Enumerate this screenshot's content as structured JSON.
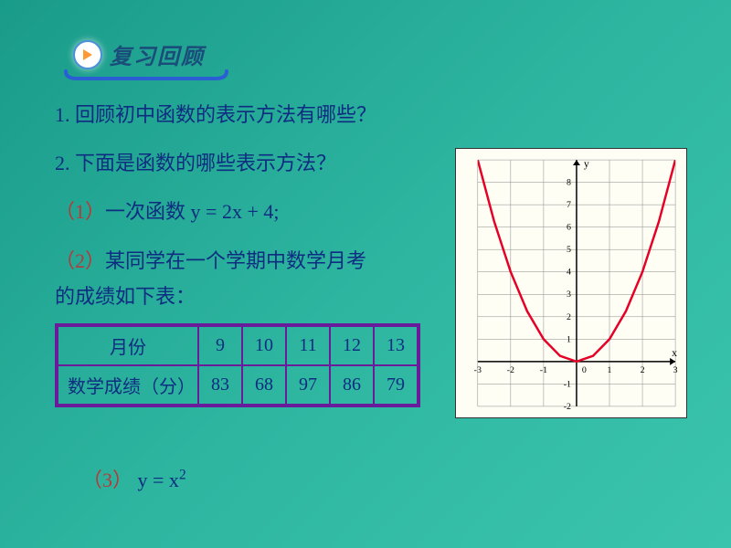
{
  "header": {
    "title": "复习回顾"
  },
  "questions": {
    "q1": "1. 回顾初中函数的表示方法有哪些？",
    "q2": "2. 下面是函数的哪些表示方法？",
    "item1_prefix": "（1）",
    "item1_text": "一次函数",
    "item1_formula": "y = 2x + 4;",
    "item2_prefix": "（2）",
    "item2_text": "某同学在一个学期中数学月考",
    "item2_tail": "的成绩如下表：",
    "item3_prefix": "（3）",
    "item3_formula_base": "y = x",
    "item3_formula_exp": "2"
  },
  "table": {
    "row1_header": "月份",
    "row2_header": "数学成绩（分）",
    "columns": [
      "9",
      "10",
      "11",
      "12",
      "13"
    ],
    "values": [
      "83",
      "68",
      "97",
      "86",
      "79"
    ],
    "border_color": "#6a1b9a",
    "text_color": "#0e2d80"
  },
  "chart": {
    "type": "line",
    "function": "y = x^2",
    "xlim": [
      -3,
      3
    ],
    "ylim": [
      -2,
      9
    ],
    "xtick_step": 1,
    "ytick_step": 1,
    "xticks": [
      -3,
      -2,
      -1,
      0,
      1,
      2,
      3
    ],
    "yticks": [
      -2,
      -1,
      0,
      1,
      2,
      3,
      4,
      5,
      6,
      7,
      8
    ],
    "background_color": "#fffef5",
    "grid_color": "#888888",
    "axis_color": "#000000",
    "curve_color": "#e60026",
    "curve_width": 2.5,
    "x_label": "x",
    "y_label": "y",
    "origin_label": "0",
    "points": [
      {
        "x": -3,
        "y": 9
      },
      {
        "x": -2.5,
        "y": 6.25
      },
      {
        "x": -2,
        "y": 4
      },
      {
        "x": -1.5,
        "y": 2.25
      },
      {
        "x": -1,
        "y": 1
      },
      {
        "x": -0.5,
        "y": 0.25
      },
      {
        "x": 0,
        "y": 0
      },
      {
        "x": 0.5,
        "y": 0.25
      },
      {
        "x": 1,
        "y": 1
      },
      {
        "x": 1.5,
        "y": 2.25
      },
      {
        "x": 2,
        "y": 4
      },
      {
        "x": 2.5,
        "y": 6.25
      },
      {
        "x": 3,
        "y": 9
      }
    ]
  },
  "colors": {
    "bg_gradient_from": "#1a9b8a",
    "bg_gradient_to": "#3bc4ad",
    "title_color": "#1a4d7a",
    "text_color": "#0e2d80",
    "prefix_color": "#b53a3a"
  }
}
